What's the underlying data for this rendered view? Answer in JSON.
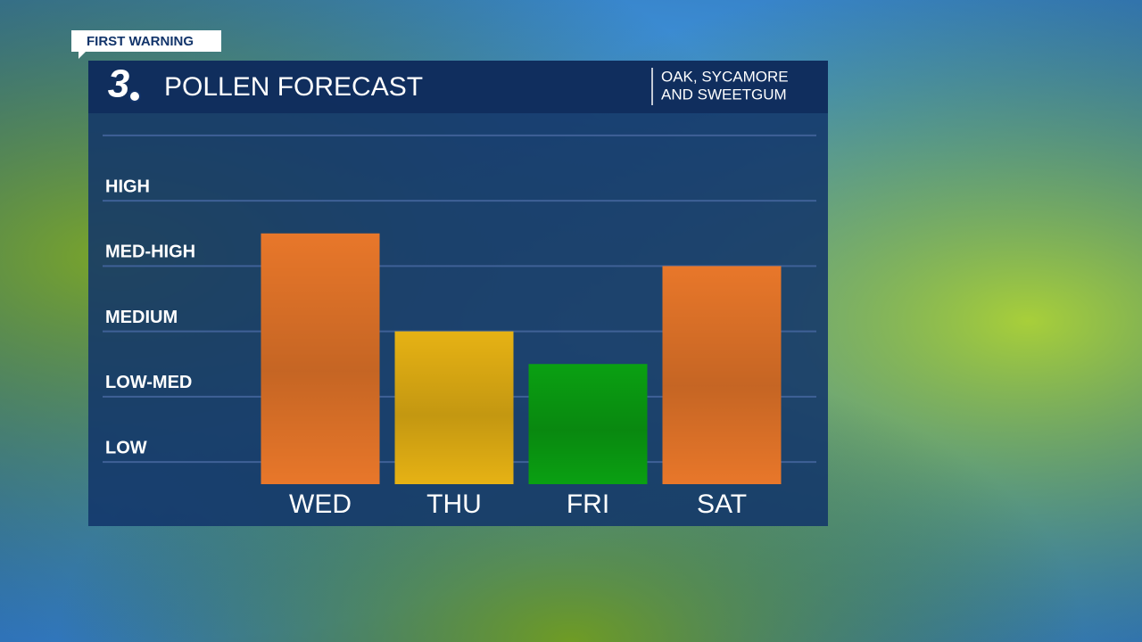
{
  "brand": {
    "tag": "FIRST WARNING",
    "logo": "3"
  },
  "chart_data": {
    "type": "bar",
    "title": "POLLEN FORECAST",
    "subtitle": [
      "OAK, SYCAMORE",
      "AND SWEETGUM"
    ],
    "categories": [
      "WED",
      "THU",
      "FRI",
      "SAT"
    ],
    "values": [
      3.5,
      2,
      1.5,
      3
    ],
    "colors": [
      "#e8772a",
      "#e6b214",
      "#0aa012",
      "#e8772a"
    ],
    "ylim": [
      -0.34,
      5.34
    ],
    "yticks": [
      {
        "value": 0,
        "label": "LOW"
      },
      {
        "value": 1,
        "label": "LOW-MED"
      },
      {
        "value": 2,
        "label": "MEDIUM"
      },
      {
        "value": 3,
        "label": "MED-HIGH"
      },
      {
        "value": 4,
        "label": "HIGH"
      }
    ],
    "gridlines": [
      0,
      1,
      2,
      3,
      4,
      5
    ],
    "grid": true
  }
}
